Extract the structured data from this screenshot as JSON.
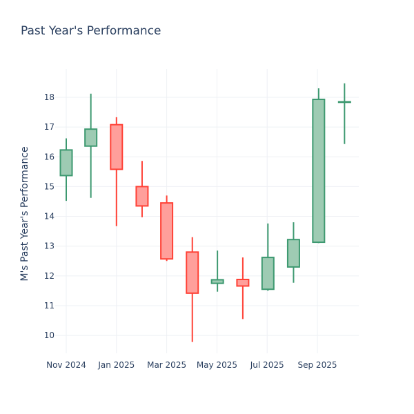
{
  "chart_data": {
    "type": "candlestick",
    "title": "Past Year's Performance",
    "xlabel": "",
    "ylabel": "M's Past Year's Performance",
    "ylim": [
      9.4,
      18.95
    ],
    "yticks": [
      10,
      11,
      12,
      13,
      14,
      15,
      16,
      17,
      18
    ],
    "xticks": [
      {
        "label": "Nov 2024",
        "month_index": 0
      },
      {
        "label": "Jan 2025",
        "month_index": 2
      },
      {
        "label": "Mar 2025",
        "month_index": 4
      },
      {
        "label": "May 2025",
        "month_index": 6
      },
      {
        "label": "Jul 2025",
        "month_index": 8
      },
      {
        "label": "Sep 2025",
        "month_index": 10
      }
    ],
    "increasing_color": "#3d9970",
    "increasing_fill": "#9ecbb3",
    "decreasing_color": "#ff4136",
    "decreasing_fill": "#ff9f9b",
    "candles": [
      {
        "month": "Nov 2024",
        "month_index": 0,
        "open": 15.37,
        "high": 16.62,
        "low": 14.52,
        "close": 16.23
      },
      {
        "month": "Dec 2024",
        "month_index": 0.98,
        "open": 16.36,
        "high": 18.12,
        "low": 14.62,
        "close": 16.93
      },
      {
        "month": "Jan 2025",
        "month_index": 2,
        "open": 17.08,
        "high": 17.33,
        "low": 13.67,
        "close": 15.58
      },
      {
        "month": "Feb 2025",
        "month_index": 3.02,
        "open": 15.0,
        "high": 15.86,
        "low": 13.97,
        "close": 14.35
      },
      {
        "month": "Mar 2025",
        "month_index": 4,
        "open": 14.45,
        "high": 14.7,
        "low": 12.5,
        "close": 12.57
      },
      {
        "month": "Apr 2025",
        "month_index": 5.02,
        "open": 12.8,
        "high": 13.3,
        "low": 9.78,
        "close": 11.42
      },
      {
        "month": "May 2025",
        "month_index": 6.02,
        "open": 11.75,
        "high": 12.85,
        "low": 11.47,
        "close": 11.87
      },
      {
        "month": "Jun 2025",
        "month_index": 7.03,
        "open": 11.88,
        "high": 12.62,
        "low": 10.55,
        "close": 11.66
      },
      {
        "month": "Jul 2025",
        "month_index": 8.03,
        "open": 11.55,
        "high": 13.76,
        "low": 11.5,
        "close": 12.62
      },
      {
        "month": "Aug 2025",
        "month_index": 9.05,
        "open": 12.3,
        "high": 13.8,
        "low": 11.77,
        "close": 13.22
      },
      {
        "month": "Sep 2025",
        "month_index": 10.05,
        "open": 13.13,
        "high": 18.3,
        "low": 13.1,
        "close": 17.93
      },
      {
        "month": "Oct 2025",
        "month_index": 11.08,
        "open": 17.83,
        "high": 18.47,
        "low": 16.43,
        "close": 17.85
      }
    ]
  }
}
